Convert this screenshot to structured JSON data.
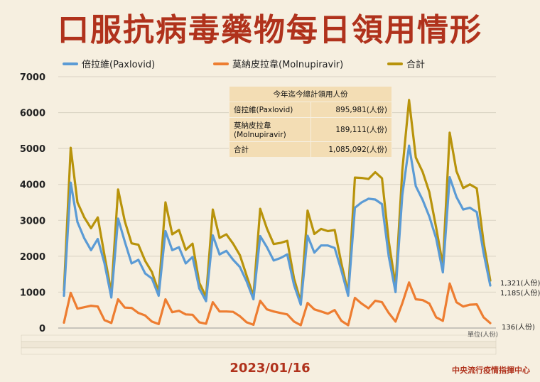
{
  "title": "口服抗病毒藥物每日領用情形",
  "date": "2023/01/16",
  "org": "中央流行疫情指揮中心",
  "unit": "單位(人份)",
  "colors": {
    "paxlovid": "#5b9bd5",
    "molnupiravir": "#ed7d31",
    "total": "#b8930b",
    "title": "#b0321c"
  },
  "summary_table": {
    "header": "今年迄今總計領用人份",
    "rows": [
      {
        "label": "倍拉維(Paxlovid)",
        "value": "895,981(人份)"
      },
      {
        "label": "莫納皮拉韋\n(Molnupiravir)",
        "value": "189,111(人份)"
      },
      {
        "label": "合計",
        "value": "1,085,092(人份)"
      }
    ]
  },
  "end_labels": {
    "total": "1,321(人份)",
    "paxlovid": "1,185(人份)",
    "molnupiravir": "136(人份)"
  },
  "chart_data": {
    "type": "line",
    "ylim": [
      0,
      7000
    ],
    "yticks": [
      0,
      1000,
      2000,
      3000,
      4000,
      5000,
      6000,
      7000
    ],
    "grid": true,
    "legend": "top",
    "series": [
      {
        "name": "倍拉維(Paxlovid)",
        "color": "#5b9bd5",
        "values": [
          900,
          4050,
          2950,
          2500,
          2170,
          2480,
          1800,
          850,
          3050,
          2400,
          1800,
          1900,
          1520,
          1380,
          900,
          2700,
          2170,
          2250,
          1800,
          1980,
          1100,
          750,
          2580,
          2050,
          2150,
          1900,
          1700,
          1300,
          800,
          2560,
          2250,
          1880,
          1950,
          2050,
          1200,
          650,
          2570,
          2100,
          2300,
          2300,
          2230,
          1600,
          900,
          3350,
          3500,
          3600,
          3580,
          3450,
          2000,
          1000,
          3700,
          5080,
          3950,
          3570,
          3100,
          2500,
          1550,
          4200,
          3650,
          3300,
          3350,
          3230,
          2100,
          1185
        ]
      },
      {
        "name": "莫納皮拉韋(Molnupiravir)",
        "color": "#ed7d31",
        "values": [
          150,
          980,
          540,
          580,
          620,
          600,
          220,
          140,
          800,
          570,
          560,
          420,
          350,
          180,
          110,
          800,
          440,
          480,
          380,
          370,
          160,
          120,
          720,
          460,
          460,
          450,
          330,
          160,
          90,
          760,
          520,
          460,
          420,
          380,
          180,
          80,
          700,
          520,
          460,
          400,
          500,
          200,
          80,
          840,
          680,
          550,
          760,
          720,
          420,
          180,
          690,
          1270,
          800,
          780,
          680,
          300,
          200,
          1240,
          720,
          600,
          650,
          660,
          300,
          136
        ]
      },
      {
        "name": "合計",
        "color": "#b8930b",
        "values": [
          1050,
          5020,
          3500,
          3080,
          2780,
          3080,
          2020,
          990,
          3860,
          2970,
          2360,
          2320,
          1870,
          1560,
          1010,
          3500,
          2610,
          2730,
          2180,
          2350,
          1260,
          870,
          3300,
          2510,
          2610,
          2350,
          2030,
          1460,
          890,
          3320,
          2770,
          2340,
          2370,
          2430,
          1380,
          730,
          3270,
          2620,
          2760,
          2700,
          2730,
          1800,
          980,
          4190,
          4180,
          4150,
          4340,
          4170,
          2420,
          1180,
          4390,
          6350,
          4750,
          4350,
          3780,
          2800,
          1750,
          5440,
          4370,
          3900,
          4000,
          3890,
          2400,
          1321
        ]
      }
    ]
  }
}
